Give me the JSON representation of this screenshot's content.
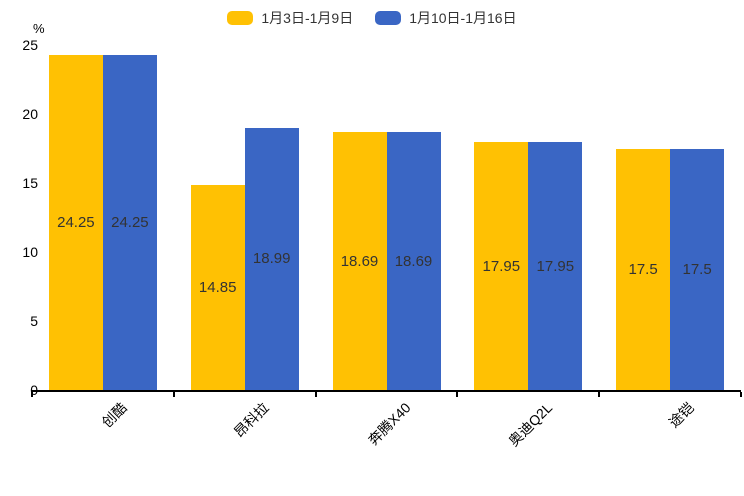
{
  "chart_data": {
    "type": "bar",
    "title": "",
    "ylabel": "%",
    "ylim": [
      0,
      25
    ],
    "yticks": [
      0,
      5,
      10,
      15,
      20,
      25
    ],
    "categories": [
      "创酷",
      "昂科拉",
      "奔腾X40",
      "奥迪Q2L",
      "途铠"
    ],
    "series": [
      {
        "name": "1月3日-1月9日",
        "color": "#FFC103",
        "values": [
          24.25,
          14.85,
          18.69,
          17.95,
          17.5
        ]
      },
      {
        "name": "1月10日-1月16日",
        "color": "#3A66C4",
        "values": [
          24.25,
          18.99,
          18.69,
          17.95,
          17.5
        ]
      }
    ],
    "legend_position": "top",
    "grid": false,
    "bar_label_color": "#333333",
    "axis_color": "#000000"
  }
}
